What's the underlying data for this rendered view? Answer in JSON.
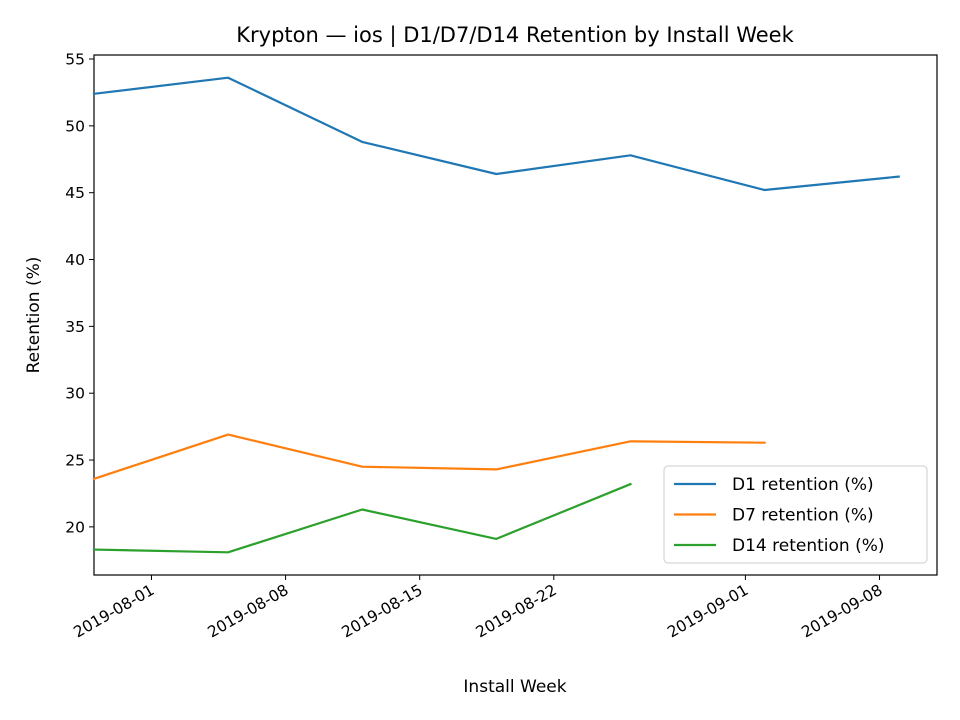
{
  "chart_data": {
    "type": "line",
    "title": "Krypton — ios | D1/D7/D14 Retention by Install Week",
    "xlabel": "Install Week",
    "ylabel": "Retention (%)",
    "xlim": [
      "2019-07-29",
      "2019-09-11"
    ],
    "ylim": [
      16.4,
      55.3
    ],
    "x_ticks": [
      "2019-08-01",
      "2019-08-08",
      "2019-08-15",
      "2019-08-22",
      "2019-09-01",
      "2019-09-08"
    ],
    "y_ticks": [
      20,
      25,
      30,
      35,
      40,
      45,
      50,
      55
    ],
    "grid": false,
    "legend_position": "lower-right",
    "series": [
      {
        "name": "D1 retention (%)",
        "color": "#1f77b4",
        "x": [
          "2019-07-29",
          "2019-08-05",
          "2019-08-12",
          "2019-08-19",
          "2019-08-26",
          "2019-09-02",
          "2019-09-09"
        ],
        "values": [
          52.4,
          53.6,
          48.8,
          46.4,
          47.8,
          45.2,
          46.2
        ]
      },
      {
        "name": "D7 retention (%)",
        "color": "#ff7f0e",
        "x": [
          "2019-07-29",
          "2019-08-05",
          "2019-08-12",
          "2019-08-19",
          "2019-08-26",
          "2019-09-02"
        ],
        "values": [
          23.6,
          26.9,
          24.5,
          24.3,
          26.4,
          26.3
        ]
      },
      {
        "name": "D14 retention (%)",
        "color": "#2ca02c",
        "x": [
          "2019-07-29",
          "2019-08-05",
          "2019-08-12",
          "2019-08-19",
          "2019-08-26"
        ],
        "values": [
          18.3,
          18.1,
          21.3,
          19.1,
          23.2
        ]
      }
    ]
  }
}
